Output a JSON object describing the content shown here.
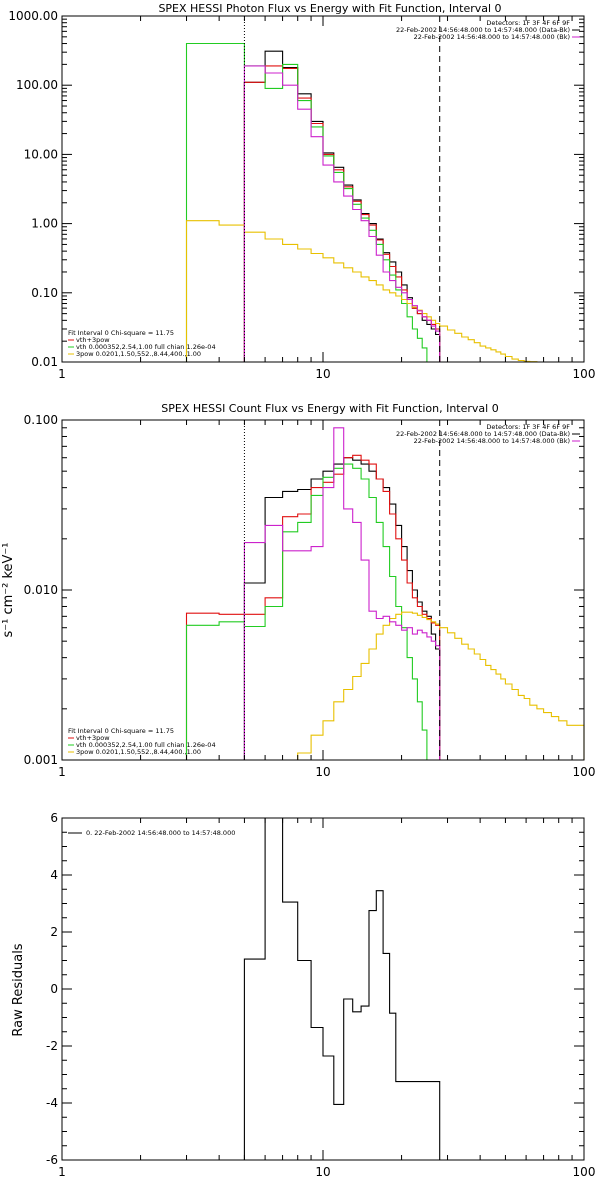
{
  "colors": {
    "black": "#000000",
    "red": "#e01010",
    "green": "#22cc22",
    "yellow": "#e8c000",
    "magenta": "#cc22cc"
  },
  "panels": [
    {
      "id": "photon",
      "title": "SPEX HESSI Photon Flux vs Energy with Fit Function, Interval 0",
      "ylabel": "",
      "xscale": "log",
      "yscale": "log",
      "xlim": [
        1,
        100
      ],
      "ylim": [
        0.01,
        1000
      ],
      "xticks": [
        {
          "v": 1,
          "label": "1"
        },
        {
          "v": 10,
          "label": "10"
        },
        {
          "v": 100,
          "label": "100"
        }
      ],
      "yticks": [
        {
          "v": 0.01,
          "label": "0.01"
        },
        {
          "v": 0.1,
          "label": "0.10"
        },
        {
          "v": 1,
          "label": "1.00"
        },
        {
          "v": 10,
          "label": "10.00"
        },
        {
          "v": 100,
          "label": "100.00"
        },
        {
          "v": 1000,
          "label": "1000.00"
        }
      ],
      "vlines": [
        {
          "x": 5,
          "style": "dotted"
        },
        {
          "x": 28,
          "style": "dashed"
        }
      ],
      "info_lines": [
        {
          "text": "Detectors: 1F 3F 4F 6F 9F",
          "color": "black"
        },
        {
          "text": "22-Feb-2002 14:56:48.000 to 14:57:48.000 (Data-Bk)",
          "color": "black"
        },
        {
          "text": "22-Feb-2002 14:56:48.000 to 14:57:48.000 (Bk)",
          "color": "magenta"
        }
      ],
      "legend_lines": [
        {
          "text": "Fit Interval 0   Chi-square = 11.75",
          "color": "black"
        },
        {
          "text": "vth+3pow",
          "color": "red"
        },
        {
          "text": "vth 0.000352,2.54,1.00   full chian 1.26e-04",
          "color": "green"
        },
        {
          "text": "3pow 0.0201,1.50,552.,8.44,400.,1.00",
          "color": "yellow"
        }
      ],
      "series": [
        {
          "name": "Data-Bk",
          "color": "black",
          "edges": [
            5,
            6,
            7,
            8,
            9,
            10,
            11,
            12,
            13,
            14,
            15,
            16,
            17,
            18,
            19,
            20,
            21,
            22,
            23,
            24,
            25,
            26,
            27,
            28
          ],
          "values": [
            110,
            310,
            180,
            75,
            30,
            10.5,
            6.5,
            3.6,
            2.2,
            1.4,
            1.0,
            0.6,
            0.38,
            0.28,
            0.2,
            0.13,
            0.085,
            0.06,
            0.05,
            0.04,
            0.035,
            0.03,
            0.025
          ]
        },
        {
          "name": "vth+3pow",
          "color": "red",
          "edges": [
            5,
            6,
            7,
            8,
            9,
            10,
            11,
            12,
            13,
            14,
            15,
            16,
            17,
            18,
            19,
            20,
            21,
            22,
            23,
            24,
            25,
            26,
            27,
            28
          ],
          "values": [
            110,
            190,
            175,
            65,
            28,
            10,
            6,
            3.4,
            2.1,
            1.35,
            0.95,
            0.58,
            0.36,
            0.24,
            0.17,
            0.11,
            0.08,
            0.06,
            0.05,
            0.045,
            0.04,
            0.035,
            0.03
          ]
        },
        {
          "name": "vth",
          "color": "green",
          "edges": [
            3,
            4,
            5,
            6,
            7,
            8,
            9,
            10,
            11,
            12,
            13,
            14,
            15,
            16,
            17,
            18,
            19,
            20,
            21,
            22,
            23,
            24,
            25,
            26
          ],
          "values": [
            400,
            400,
            190,
            90,
            200,
            60,
            25,
            9.5,
            5.5,
            3.2,
            1.9,
            1.2,
            0.8,
            0.5,
            0.3,
            0.18,
            0.11,
            0.07,
            0.045,
            0.03,
            0.022,
            0.016,
            0.01
          ]
        },
        {
          "name": "3pow",
          "color": "yellow",
          "edges": [
            3,
            4,
            5,
            6,
            7,
            8,
            9,
            10,
            11,
            12,
            13,
            14,
            15,
            16,
            17,
            18,
            19,
            20,
            21,
            22,
            23,
            24,
            25,
            26,
            27,
            28,
            30,
            32,
            34,
            36,
            38,
            40,
            42,
            44,
            46,
            48,
            50,
            53,
            56,
            59,
            62,
            66,
            70,
            75,
            80
          ],
          "values": [
            1.1,
            0.95,
            0.75,
            0.6,
            0.5,
            0.43,
            0.37,
            0.32,
            0.27,
            0.23,
            0.2,
            0.17,
            0.15,
            0.13,
            0.11,
            0.1,
            0.09,
            0.08,
            0.07,
            0.062,
            0.056,
            0.05,
            0.045,
            0.04,
            0.036,
            0.033,
            0.029,
            0.026,
            0.023,
            0.021,
            0.019,
            0.017,
            0.016,
            0.015,
            0.014,
            0.013,
            0.012,
            0.011,
            0.0105,
            0.0102,
            0.0101,
            0.01,
            0.01,
            0.01
          ]
        },
        {
          "name": "Bk",
          "color": "magenta",
          "edges": [
            5,
            6,
            7,
            8,
            9,
            10,
            11,
            12,
            13,
            14,
            15,
            16,
            17,
            18,
            19,
            20,
            21,
            22,
            23,
            24,
            25,
            26,
            27,
            28
          ],
          "values": [
            190,
            150,
            100,
            45,
            18,
            7,
            4,
            2.5,
            1.6,
            1.1,
            0.65,
            0.35,
            0.2,
            0.15,
            0.12,
            0.1,
            0.08,
            0.065,
            0.055,
            0.045,
            0.04,
            0.033,
            0.028
          ]
        }
      ]
    },
    {
      "id": "count",
      "title": "SPEX HESSI Count Flux vs Energy with Fit Function, Interval 0",
      "ylabel": "s⁻¹ cm⁻² keV⁻¹",
      "xscale": "log",
      "yscale": "log",
      "xlim": [
        1,
        100
      ],
      "ylim": [
        0.001,
        0.1
      ],
      "xticks": [
        {
          "v": 1,
          "label": "1"
        },
        {
          "v": 10,
          "label": "10"
        },
        {
          "v": 100,
          "label": "100"
        }
      ],
      "yticks": [
        {
          "v": 0.001,
          "label": "0.001"
        },
        {
          "v": 0.01,
          "label": "0.010"
        },
        {
          "v": 0.1,
          "label": "0.100"
        }
      ],
      "vlines": [
        {
          "x": 5,
          "style": "dotted"
        },
        {
          "x": 28,
          "style": "dashed"
        }
      ],
      "info_lines": [
        {
          "text": "Detectors: 1F 3F 4F 6F 9F",
          "color": "black"
        },
        {
          "text": "22-Feb-2002 14:56:48.000 to 14:57:48.000 (Data-Bk)",
          "color": "black"
        },
        {
          "text": "22-Feb-2002 14:56:48.000 to 14:57:48.000 (Bk)",
          "color": "magenta"
        }
      ],
      "legend_lines": [
        {
          "text": "Fit Interval 0   Chi-square = 11.75",
          "color": "black"
        },
        {
          "text": "vth+3pow",
          "color": "red"
        },
        {
          "text": "vth 0.000352,2.54,1.00   full chian 1.26e-04",
          "color": "green"
        },
        {
          "text": "3pow 0.0201,1.50,552.,8.44,400.,1.00",
          "color": "yellow"
        }
      ],
      "series": [
        {
          "name": "Data-Bk",
          "color": "black",
          "edges": [
            5,
            6,
            7,
            8,
            9,
            10,
            11,
            12,
            13,
            14,
            15,
            16,
            17,
            18,
            19,
            20,
            21,
            22,
            23,
            24,
            25,
            26,
            27,
            28
          ],
          "values": [
            0.011,
            0.035,
            0.038,
            0.039,
            0.045,
            0.05,
            0.055,
            0.06,
            0.058,
            0.055,
            0.05,
            0.045,
            0.04,
            0.032,
            0.024,
            0.018,
            0.013,
            0.01,
            0.0085,
            0.0075,
            0.007,
            0.0055,
            0.0045
          ]
        },
        {
          "name": "vth+3pow",
          "color": "red",
          "edges": [
            3,
            4,
            5,
            6,
            7,
            8,
            9,
            10,
            11,
            12,
            13,
            14,
            15,
            16,
            17,
            18,
            19,
            20,
            21,
            22,
            23,
            24,
            25,
            26,
            27,
            28
          ],
          "values": [
            0.0073,
            0.0072,
            0.0072,
            0.009,
            0.027,
            0.028,
            0.04,
            0.043,
            0.048,
            0.06,
            0.062,
            0.058,
            0.055,
            0.045,
            0.038,
            0.028,
            0.02,
            0.015,
            0.011,
            0.009,
            0.008,
            0.0072,
            0.0068,
            0.0064,
            0.0062
          ]
        },
        {
          "name": "vth",
          "color": "green",
          "edges": [
            3,
            4,
            5,
            6,
            7,
            8,
            9,
            10,
            11,
            12,
            13,
            14,
            15,
            16,
            17,
            18,
            19,
            20,
            21,
            22,
            23,
            24,
            25,
            26
          ],
          "values": [
            0.0062,
            0.0065,
            0.0061,
            0.008,
            0.022,
            0.025,
            0.036,
            0.046,
            0.052,
            0.055,
            0.052,
            0.045,
            0.035,
            0.025,
            0.018,
            0.012,
            0.008,
            0.006,
            0.004,
            0.003,
            0.0022,
            0.0015,
            0.001
          ]
        },
        {
          "name": "3pow",
          "color": "yellow",
          "edges": [
            7,
            8,
            9,
            10,
            11,
            12,
            13,
            14,
            15,
            16,
            17,
            18,
            19,
            20,
            21,
            22,
            23,
            24,
            25,
            26,
            27,
            28,
            30,
            32,
            34,
            36,
            38,
            40,
            42,
            44,
            46,
            48,
            50,
            53,
            56,
            59,
            62,
            66,
            70,
            75,
            80,
            86,
            93,
            100
          ],
          "values": [
            0.001,
            0.0011,
            0.0014,
            0.0017,
            0.0022,
            0.0026,
            0.0031,
            0.0037,
            0.0045,
            0.0055,
            0.0062,
            0.0068,
            0.0072,
            0.0074,
            0.0074,
            0.0073,
            0.0071,
            0.0069,
            0.0067,
            0.0065,
            0.0063,
            0.006,
            0.0056,
            0.0052,
            0.0048,
            0.0045,
            0.0042,
            0.0039,
            0.0036,
            0.0034,
            0.0032,
            0.003,
            0.0028,
            0.0026,
            0.0024,
            0.0023,
            0.0021,
            0.002,
            0.0019,
            0.0018,
            0.0017,
            0.0016,
            0.0016
          ]
        },
        {
          "name": "Bk",
          "color": "magenta",
          "edges": [
            5,
            6,
            7,
            8,
            9,
            10,
            11,
            12,
            13,
            14,
            15,
            16,
            17,
            18,
            19,
            20,
            21,
            22,
            23,
            24,
            25,
            26,
            27,
            28
          ],
          "values": [
            0.019,
            0.024,
            0.017,
            0.017,
            0.018,
            0.04,
            0.09,
            0.03,
            0.025,
            0.015,
            0.0075,
            0.0068,
            0.007,
            0.0065,
            0.0062,
            0.0058,
            0.006,
            0.0055,
            0.0058,
            0.0056,
            0.0053,
            0.005,
            0.0047
          ]
        }
      ]
    },
    {
      "id": "residuals",
      "title": "",
      "ylabel": "Raw Residuals",
      "xscale": "log",
      "yscale": "linear",
      "xlim": [
        1,
        100
      ],
      "ylim": [
        -6,
        6
      ],
      "xticks": [
        {
          "v": 1,
          "label": "1"
        },
        {
          "v": 10,
          "label": "10"
        },
        {
          "v": 100,
          "label": "100"
        }
      ],
      "yticks": [
        {
          "v": -6,
          "label": "-6"
        },
        {
          "v": -4,
          "label": "-4"
        },
        {
          "v": -2,
          "label": "-2"
        },
        {
          "v": 0,
          "label": "0"
        },
        {
          "v": 2,
          "label": "2"
        },
        {
          "v": 4,
          "label": "4"
        },
        {
          "v": 6,
          "label": "6"
        }
      ],
      "vlines": [],
      "info_lines": [],
      "legend_lines": [
        {
          "text": "0. 22-Feb-2002 14:56:48.000 to 14:57:48.000",
          "color": "black",
          "swatch": true
        }
      ],
      "series": [
        {
          "name": "residuals",
          "color": "black",
          "drop_to_bottom": true,
          "edges": [
            5,
            6,
            6.5,
            7,
            7.5,
            8,
            9,
            10,
            11,
            12,
            13,
            14,
            15,
            16,
            17,
            18,
            19,
            20,
            21,
            22,
            23,
            24,
            25,
            26,
            27,
            28
          ],
          "values": [
            1.05,
            6.1,
            6.1,
            3.05,
            3.05,
            1.0,
            -1.35,
            -2.35,
            -4.05,
            -0.35,
            -0.8,
            -0.6,
            2.75,
            3.45,
            1.25,
            -0.85,
            -3.25,
            -3.25,
            -3.25,
            -3.25,
            -3.25,
            -3.25,
            -3.25,
            -3.25,
            -3.25
          ]
        }
      ]
    }
  ]
}
